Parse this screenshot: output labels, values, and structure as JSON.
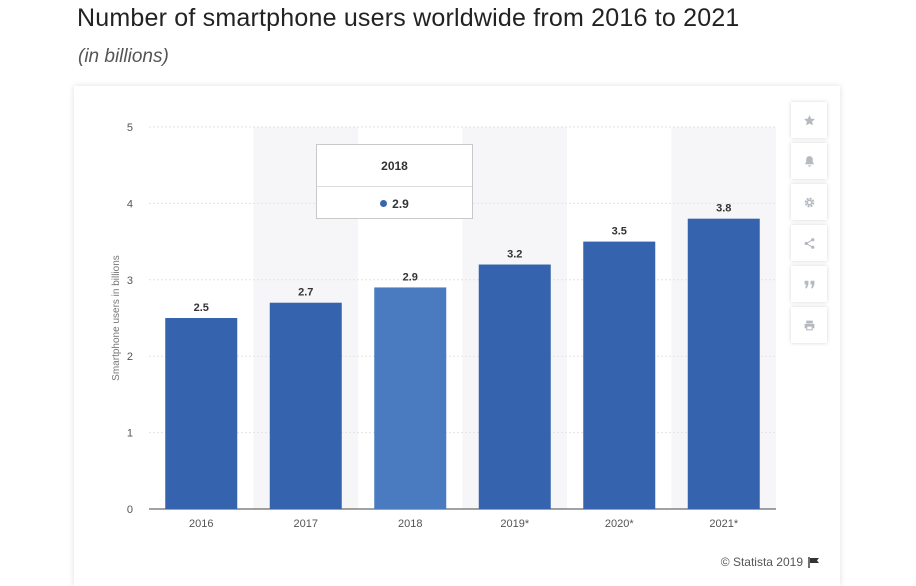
{
  "title": "Number of smartphone users worldwide from 2016 to 2021",
  "subtitle": "(in billions)",
  "credit": "© Statista 2019",
  "colors": {
    "bar": "#3563ad",
    "bar_highlight": "#4a7bc0",
    "axis_text": "#555555",
    "grid": "#e3e3e3",
    "band": "#f6f6f8"
  },
  "toolbar": {
    "items": [
      {
        "name": "star-icon",
        "label": "Favorite"
      },
      {
        "name": "bell-icon",
        "label": "Notifications"
      },
      {
        "name": "gear-icon",
        "label": "Settings"
      },
      {
        "name": "share-icon",
        "label": "Share"
      },
      {
        "name": "quote-icon",
        "label": "Cite"
      },
      {
        "name": "print-icon",
        "label": "Print"
      }
    ]
  },
  "tooltip": {
    "category": "2018",
    "value": "2.9"
  },
  "chart_data": {
    "type": "bar",
    "categories": [
      "2016",
      "2017",
      "2018",
      "2019*",
      "2020*",
      "2021*"
    ],
    "values": [
      2.5,
      2.7,
      2.9,
      3.2,
      3.5,
      3.8
    ],
    "data_labels": [
      "2.5",
      "2.7",
      "2.9",
      "3.2",
      "3.5",
      "3.8"
    ],
    "highlighted_index": 2,
    "ylabel": "Smartphone users in billions",
    "xlabel": "",
    "ylim": [
      0,
      5
    ],
    "yticks": [
      0,
      1,
      2,
      3,
      4,
      5
    ],
    "grid": true,
    "legend": "none"
  }
}
